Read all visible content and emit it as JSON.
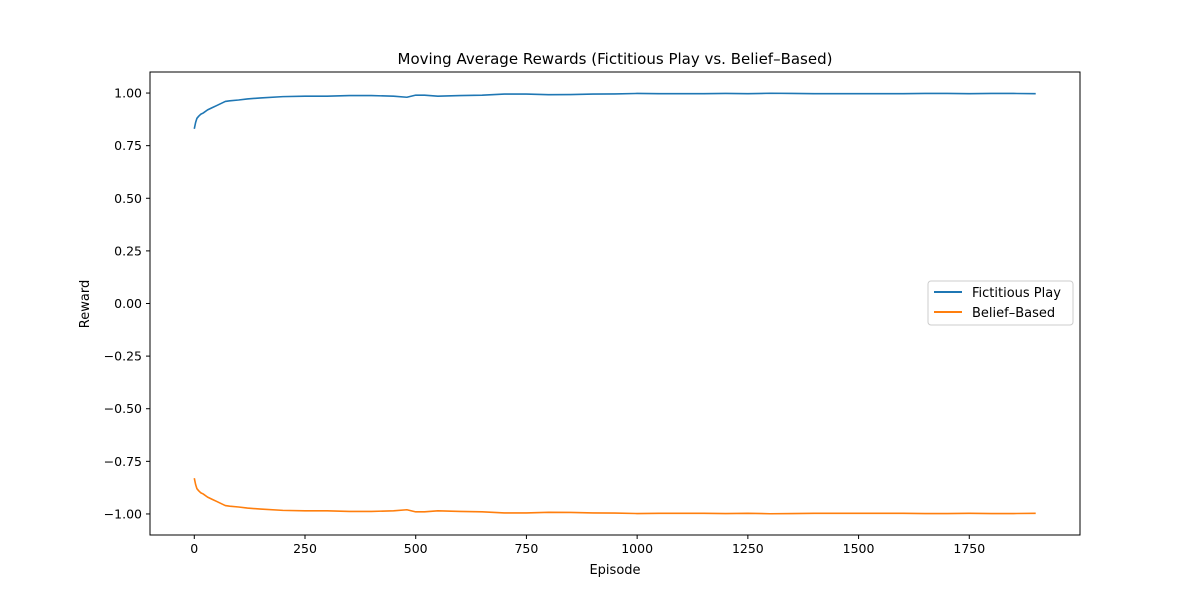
{
  "chart_data": {
    "type": "line",
    "title": "Moving Average Rewards (Fictitious Play vs. Belief–Based)",
    "xlabel": "Episode",
    "ylabel": "Reward",
    "xlim": [
      -100,
      2000
    ],
    "ylim": [
      -1.1,
      1.1
    ],
    "xticks": [
      0,
      250,
      500,
      750,
      1000,
      1250,
      1500,
      1750
    ],
    "xtick_labels": [
      "0",
      "250",
      "500",
      "750",
      "1000",
      "1250",
      "1500",
      "1750"
    ],
    "yticks": [
      1.0,
      0.75,
      0.5,
      0.25,
      0.0,
      -0.25,
      -0.5,
      -0.75,
      -1.0
    ],
    "ytick_labels": [
      "1.00",
      "0.75",
      "0.50",
      "0.25",
      "0.00",
      "−0.25",
      "−0.50",
      "−0.75",
      "−1.00"
    ],
    "grid": false,
    "legend_position": "center-right",
    "series": [
      {
        "name": "Fictitious Play",
        "color": "#1f77b4",
        "x": [
          0,
          3,
          6,
          10,
          15,
          20,
          30,
          40,
          50,
          60,
          70,
          80,
          100,
          120,
          150,
          200,
          250,
          300,
          350,
          400,
          450,
          480,
          500,
          520,
          550,
          600,
          650,
          700,
          750,
          800,
          850,
          900,
          950,
          1000,
          1050,
          1100,
          1150,
          1200,
          1250,
          1300,
          1350,
          1400,
          1450,
          1500,
          1550,
          1600,
          1650,
          1700,
          1750,
          1800,
          1850,
          1900
        ],
        "y": [
          0.83,
          0.86,
          0.88,
          0.89,
          0.9,
          0.905,
          0.92,
          0.93,
          0.94,
          0.95,
          0.96,
          0.963,
          0.967,
          0.972,
          0.977,
          0.983,
          0.985,
          0.985,
          0.988,
          0.988,
          0.985,
          0.98,
          0.99,
          0.99,
          0.985,
          0.988,
          0.99,
          0.995,
          0.995,
          0.992,
          0.993,
          0.995,
          0.996,
          0.998,
          0.997,
          0.997,
          0.997,
          0.998,
          0.997,
          0.999,
          0.998,
          0.997,
          0.997,
          0.997,
          0.997,
          0.997,
          0.998,
          0.998,
          0.997,
          0.998,
          0.998,
          0.997
        ]
      },
      {
        "name": "Belief–Based",
        "color": "#ff7f0e",
        "x": [
          0,
          3,
          6,
          10,
          15,
          20,
          30,
          40,
          50,
          60,
          70,
          80,
          100,
          120,
          150,
          200,
          250,
          300,
          350,
          400,
          450,
          480,
          500,
          520,
          550,
          600,
          650,
          700,
          750,
          800,
          850,
          900,
          950,
          1000,
          1050,
          1100,
          1150,
          1200,
          1250,
          1300,
          1350,
          1400,
          1450,
          1500,
          1550,
          1600,
          1650,
          1700,
          1750,
          1800,
          1850,
          1900
        ],
        "y": [
          -0.83,
          -0.86,
          -0.88,
          -0.89,
          -0.9,
          -0.905,
          -0.92,
          -0.93,
          -0.94,
          -0.95,
          -0.96,
          -0.963,
          -0.967,
          -0.972,
          -0.977,
          -0.983,
          -0.985,
          -0.985,
          -0.988,
          -0.988,
          -0.985,
          -0.98,
          -0.99,
          -0.99,
          -0.985,
          -0.988,
          -0.99,
          -0.995,
          -0.995,
          -0.992,
          -0.993,
          -0.995,
          -0.996,
          -0.998,
          -0.997,
          -0.997,
          -0.997,
          -0.998,
          -0.997,
          -0.999,
          -0.998,
          -0.997,
          -0.997,
          -0.997,
          -0.997,
          -0.997,
          -0.998,
          -0.998,
          -0.997,
          -0.998,
          -0.998,
          -0.997
        ]
      }
    ]
  }
}
